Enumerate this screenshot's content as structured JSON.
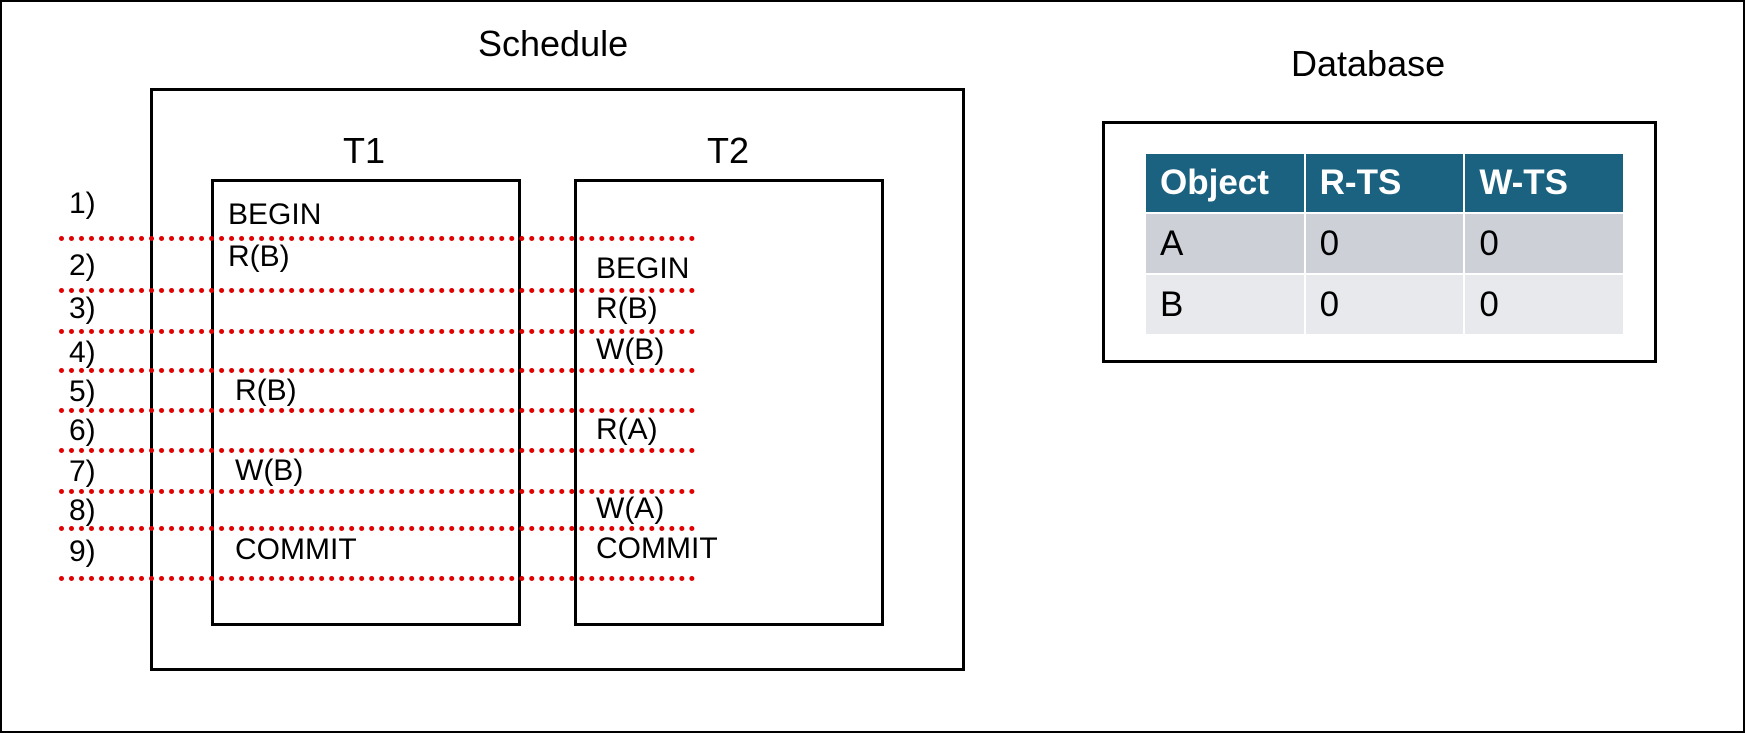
{
  "colors": {
    "table_header_background": "#1b6280",
    "table_header_text": "#ffffff",
    "table_row_a_background": "#cdd1d7",
    "table_row_b_background": "#e7e9ed",
    "schedule_dotted_line": "#e00000"
  },
  "schedule": {
    "title": "Schedule",
    "transactions": [
      {
        "name": "T1"
      },
      {
        "name": "T2"
      }
    ],
    "steps": [
      {
        "label": "1)",
        "t1": "BEGIN",
        "t2": ""
      },
      {
        "label": "2)",
        "t1": "R(B)",
        "t2": "BEGIN"
      },
      {
        "label": "3)",
        "t1": "",
        "t2": "R(B)"
      },
      {
        "label": "4)",
        "t1": "",
        "t2": "W(B)"
      },
      {
        "label": "5)",
        "t1": "R(B)",
        "t2": ""
      },
      {
        "label": "6)",
        "t1": "",
        "t2": "R(A)"
      },
      {
        "label": "7)",
        "t1": "W(B)",
        "t2": ""
      },
      {
        "label": "8)",
        "t1": "",
        "t2": "W(A)"
      },
      {
        "label": "9)",
        "t1": "COMMIT",
        "t2": "COMMIT"
      }
    ]
  },
  "database": {
    "title": "Database",
    "table": {
      "headers": [
        "Object",
        "R-TS",
        "W-TS"
      ],
      "rows": [
        [
          "A",
          "0",
          "0"
        ],
        [
          "B",
          "0",
          "0"
        ]
      ]
    }
  }
}
